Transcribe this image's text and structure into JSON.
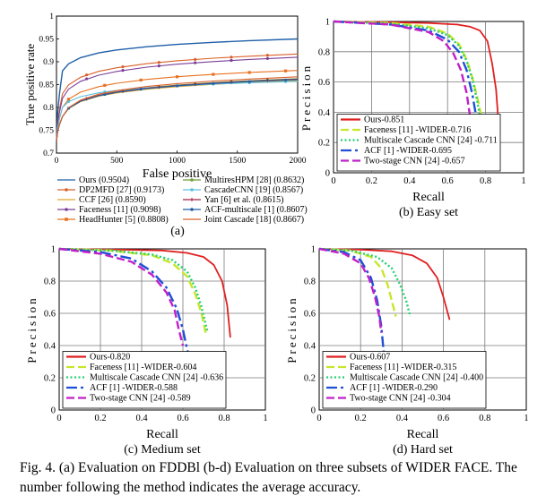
{
  "caption": "Fig. 4.  (a) Evaluation on FDDBl (b-d) Evaluation on three subsets of WIDER FACE. The number following the method indicates the average accuracy.",
  "chart_data": [
    {
      "id": "a",
      "type": "line",
      "panel_label": "(a)",
      "xlabel": "False positive",
      "ylabel": "True positive rate",
      "xlim": [
        0,
        2000
      ],
      "ylim": [
        0.7,
        1
      ],
      "xticks": [
        "0",
        "500",
        "1000",
        "1500",
        "2000"
      ],
      "yticks": [
        "0.7",
        "0.75",
        "0.8",
        "0.85",
        "0.9",
        "0.95",
        "1"
      ],
      "grid": false,
      "legend_placement": "below",
      "series": [
        {
          "name": "Ours (0.9504)",
          "color": "#1f5fa8",
          "marker": "none",
          "final": 0.95,
          "at50": 0.88
        },
        {
          "name": "DP2MFD [27] (0.9173)",
          "color": "#d9602a",
          "marker": "circle",
          "final": 0.917,
          "at50": 0.83
        },
        {
          "name": "CCF [26] (0.8590)",
          "color": "#e3a82b",
          "marker": "none",
          "final": 0.859,
          "at50": 0.78
        },
        {
          "name": "Faceness [11] (0.9098)",
          "color": "#7a3f98",
          "marker": "circle",
          "final": 0.91,
          "at50": 0.82
        },
        {
          "name": "HeadHunter [5] (0.8808)",
          "color": "#e8701e",
          "marker": "square",
          "final": 0.881,
          "at50": 0.8
        },
        {
          "name": "MultiresHPM [28] (0.8632)",
          "color": "#6f9e3a",
          "marker": "circle",
          "final": 0.863,
          "at50": 0.78
        },
        {
          "name": "CascadeCNN [19] (0.8567)",
          "color": "#5bc0de",
          "marker": "circle",
          "final": 0.857,
          "at50": 0.8
        },
        {
          "name": "Yan [6] et al. (0.8615)",
          "color": "#a0203e",
          "marker": "plus",
          "final": 0.862,
          "at50": 0.78
        },
        {
          "name": "ACF-multiscale [1] (0.8607)",
          "color": "#1f5fa8",
          "marker": "circle",
          "final": 0.861,
          "at50": 0.78
        },
        {
          "name": "Joint Cascade [18] (0.8667)",
          "color": "#d9602a",
          "marker": "none",
          "final": 0.867,
          "at50": 0.78
        }
      ]
    },
    {
      "id": "b",
      "type": "line",
      "panel_label": "(b) Easy set",
      "xlabel": "Recall",
      "ylabel": "Precision",
      "xlim": [
        0,
        1
      ],
      "ylim": [
        0,
        1
      ],
      "xticks": [
        "0",
        "0.2",
        "0.4",
        "0.6",
        "0.8",
        "1"
      ],
      "yticks": [
        "0",
        "0.2",
        "0.4",
        "0.6",
        "0.8",
        "1"
      ],
      "grid": true,
      "legend_placement": "bottom-left",
      "series": [
        {
          "name": "Ours-0.851",
          "color": "#e02020",
          "style": "solid",
          "points": [
            [
              0,
              1
            ],
            [
              0.3,
              0.995
            ],
            [
              0.5,
              0.99
            ],
            [
              0.65,
              0.98
            ],
            [
              0.72,
              0.965
            ],
            [
              0.77,
              0.94
            ],
            [
              0.81,
              0.87
            ],
            [
              0.835,
              0.72
            ],
            [
              0.855,
              0.55
            ],
            [
              0.87,
              0.3
            ]
          ]
        },
        {
          "name": "Faceness [11] -WIDER-0.716",
          "color": "#c8e62a",
          "style": "dashed",
          "points": [
            [
              0,
              1
            ],
            [
              0.3,
              0.99
            ],
            [
              0.5,
              0.965
            ],
            [
              0.6,
              0.92
            ],
            [
              0.66,
              0.85
            ],
            [
              0.7,
              0.75
            ],
            [
              0.73,
              0.63
            ],
            [
              0.76,
              0.48
            ],
            [
              0.79,
              0.3
            ]
          ]
        },
        {
          "name": "Multiscale Cascade CNN [24] -0.711",
          "color": "#22d070",
          "style": "dotted",
          "points": [
            [
              0,
              1
            ],
            [
              0.3,
              0.985
            ],
            [
              0.5,
              0.955
            ],
            [
              0.6,
              0.91
            ],
            [
              0.66,
              0.84
            ],
            [
              0.7,
              0.74
            ],
            [
              0.73,
              0.62
            ],
            [
              0.755,
              0.48
            ],
            [
              0.78,
              0.3
            ]
          ]
        },
        {
          "name": "ACF [1] -WIDER-0.695",
          "color": "#1f4fd8",
          "style": "dashdot",
          "points": [
            [
              0,
              1
            ],
            [
              0.3,
              0.98
            ],
            [
              0.5,
              0.94
            ],
            [
              0.6,
              0.88
            ],
            [
              0.66,
              0.8
            ],
            [
              0.7,
              0.68
            ],
            [
              0.73,
              0.52
            ],
            [
              0.755,
              0.34
            ],
            [
              0.77,
              0.25
            ]
          ]
        },
        {
          "name": "Two-stage CNN [24] -0.657",
          "color": "#c020c8",
          "style": "dashed",
          "points": [
            [
              0,
              1
            ],
            [
              0.3,
              0.98
            ],
            [
              0.5,
              0.93
            ],
            [
              0.58,
              0.87
            ],
            [
              0.63,
              0.79
            ],
            [
              0.67,
              0.68
            ],
            [
              0.7,
              0.53
            ],
            [
              0.72,
              0.36
            ]
          ]
        }
      ]
    },
    {
      "id": "c",
      "type": "line",
      "panel_label": "(c) Medium set",
      "xlabel": "Recall",
      "ylabel": "Precision",
      "xlim": [
        0,
        1
      ],
      "ylim": [
        0,
        1
      ],
      "xticks": [
        "0",
        "0.2",
        "0.4",
        "0.6",
        "0.8",
        "1"
      ],
      "yticks": [
        "0",
        "0.2",
        "0.4",
        "0.6",
        "0.8",
        "1"
      ],
      "grid": true,
      "legend_placement": "bottom-left",
      "series": [
        {
          "name": "Ours-0.820",
          "color": "#e02020",
          "style": "solid",
          "points": [
            [
              0,
              1
            ],
            [
              0.3,
              0.995
            ],
            [
              0.5,
              0.99
            ],
            [
              0.62,
              0.975
            ],
            [
              0.7,
              0.95
            ],
            [
              0.75,
              0.9
            ],
            [
              0.79,
              0.8
            ],
            [
              0.815,
              0.65
            ],
            [
              0.83,
              0.45
            ]
          ]
        },
        {
          "name": "Faceness [11] -WIDER-0.604",
          "color": "#c8e62a",
          "style": "dashed",
          "points": [
            [
              0,
              1
            ],
            [
              0.25,
              0.99
            ],
            [
              0.45,
              0.96
            ],
            [
              0.55,
              0.91
            ],
            [
              0.62,
              0.83
            ],
            [
              0.66,
              0.72
            ],
            [
              0.69,
              0.6
            ],
            [
              0.71,
              0.48
            ]
          ]
        },
        {
          "name": "Multiscale Cascade CNN [24] -0.636",
          "color": "#22d070",
          "style": "dotted",
          "points": [
            [
              0,
              1
            ],
            [
              0.25,
              0.99
            ],
            [
              0.45,
              0.965
            ],
            [
              0.55,
              0.93
            ],
            [
              0.62,
              0.86
            ],
            [
              0.66,
              0.76
            ],
            [
              0.69,
              0.64
            ],
            [
              0.72,
              0.48
            ]
          ]
        },
        {
          "name": "ACF [1] -WIDER-0.588",
          "color": "#1f4fd8",
          "style": "dashdot",
          "points": [
            [
              0,
              1
            ],
            [
              0.2,
              0.98
            ],
            [
              0.35,
              0.94
            ],
            [
              0.45,
              0.86
            ],
            [
              0.52,
              0.76
            ],
            [
              0.57,
              0.63
            ],
            [
              0.6,
              0.5
            ],
            [
              0.62,
              0.38
            ],
            [
              0.64,
              0.28
            ]
          ]
        },
        {
          "name": "Two-stage CNN [24] -0.589",
          "color": "#c020c8",
          "style": "dashed",
          "points": [
            [
              0,
              1
            ],
            [
              0.2,
              0.97
            ],
            [
              0.35,
              0.92
            ],
            [
              0.45,
              0.84
            ],
            [
              0.52,
              0.73
            ],
            [
              0.56,
              0.62
            ],
            [
              0.58,
              0.5
            ],
            [
              0.6,
              0.4
            ]
          ]
        }
      ]
    },
    {
      "id": "d",
      "type": "line",
      "panel_label": "(d) Hard set",
      "xlabel": "Recall",
      "ylabel": "Precision",
      "xlim": [
        0,
        1
      ],
      "ylim": [
        0,
        1
      ],
      "xticks": [
        "0",
        "0.2",
        "0.4",
        "0.6",
        "0.8",
        "1"
      ],
      "yticks": [
        "0",
        "0.2",
        "0.4",
        "0.6",
        "0.8",
        "1"
      ],
      "grid": true,
      "legend_placement": "bottom-left",
      "series": [
        {
          "name": "Ours-0.607",
          "color": "#e02020",
          "style": "solid",
          "points": [
            [
              0,
              1
            ],
            [
              0.2,
              0.995
            ],
            [
              0.35,
              0.985
            ],
            [
              0.45,
              0.96
            ],
            [
              0.52,
              0.91
            ],
            [
              0.57,
              0.82
            ],
            [
              0.6,
              0.7
            ],
            [
              0.63,
              0.56
            ]
          ]
        },
        {
          "name": "Faceness [11] -WIDER-0.315",
          "color": "#c8e62a",
          "style": "dashed",
          "points": [
            [
              0,
              1
            ],
            [
              0.15,
              0.99
            ],
            [
              0.25,
              0.95
            ],
            [
              0.3,
              0.88
            ],
            [
              0.33,
              0.78
            ],
            [
              0.35,
              0.68
            ],
            [
              0.37,
              0.58
            ]
          ]
        },
        {
          "name": "Multiscale Cascade CNN [24] -0.400",
          "color": "#22d070",
          "style": "dotted",
          "points": [
            [
              0,
              1
            ],
            [
              0.15,
              0.99
            ],
            [
              0.28,
              0.95
            ],
            [
              0.35,
              0.88
            ],
            [
              0.39,
              0.78
            ],
            [
              0.42,
              0.68
            ],
            [
              0.44,
              0.58
            ]
          ]
        },
        {
          "name": "ACF [1] -WIDER-0.290",
          "color": "#1f4fd8",
          "style": "dashdot",
          "points": [
            [
              0,
              1
            ],
            [
              0.12,
              0.98
            ],
            [
              0.2,
              0.93
            ],
            [
              0.25,
              0.82
            ],
            [
              0.28,
              0.68
            ],
            [
              0.3,
              0.52
            ],
            [
              0.31,
              0.38
            ],
            [
              0.32,
              0.28
            ]
          ]
        },
        {
          "name": "Two-stage CNN [24] -0.304",
          "color": "#c020c8",
          "style": "dashed",
          "points": [
            [
              0,
              1
            ],
            [
              0.12,
              0.97
            ],
            [
              0.2,
              0.91
            ],
            [
              0.24,
              0.82
            ],
            [
              0.27,
              0.7
            ],
            [
              0.29,
              0.58
            ],
            [
              0.3,
              0.48
            ]
          ]
        }
      ]
    }
  ]
}
